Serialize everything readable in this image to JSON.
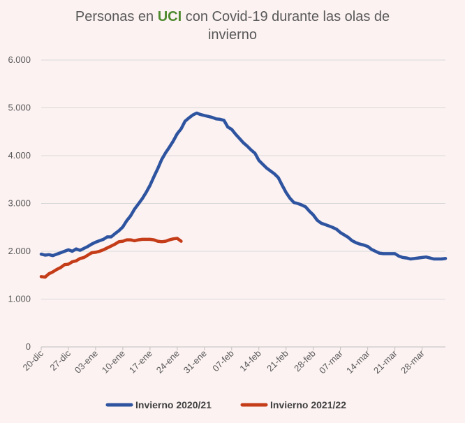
{
  "chart_data": {
    "type": "line",
    "title": {
      "prefix": "Personas en ",
      "highlight": "UCI",
      "suffix_line1": " con Covid-19 durante las olas de",
      "line2": "invierno"
    },
    "xlabel": "",
    "ylabel": "",
    "ylim": [
      0,
      6000
    ],
    "yticks": [
      "0",
      "1.000",
      "2.000",
      "3.000",
      "4.000",
      "5.000",
      "6.000"
    ],
    "ytick_values": [
      0,
      1000,
      2000,
      3000,
      4000,
      5000,
      6000
    ],
    "xlim": [
      0,
      104
    ],
    "xticks": [
      "20-dic",
      "27-dic",
      "03-ene",
      "10-ene",
      "17-ene",
      "24-ene",
      "31-ene",
      "07-feb",
      "14-feb",
      "21-feb",
      "28-feb",
      "07-mar",
      "14-mar",
      "21-mar",
      "28-mar"
    ],
    "xtick_days": [
      0,
      7,
      14,
      21,
      28,
      35,
      42,
      49,
      56,
      63,
      70,
      77,
      84,
      91,
      98
    ],
    "grid": "horizontal",
    "legend_position": "bottom",
    "series": [
      {
        "name": "Invierno 2020/21",
        "color": "#2e54a0",
        "x": [
          0,
          1,
          2,
          3,
          4,
          5,
          6,
          7,
          8,
          9,
          10,
          11,
          12,
          13,
          14,
          15,
          16,
          17,
          18,
          19,
          20,
          21,
          22,
          23,
          24,
          25,
          26,
          27,
          28,
          29,
          30,
          31,
          32,
          33,
          34,
          35,
          36,
          37,
          38,
          39,
          40,
          41,
          42,
          43,
          44,
          45,
          46,
          47,
          48,
          49,
          50,
          51,
          52,
          53,
          54,
          55,
          56,
          57,
          58,
          59,
          60,
          61,
          62,
          63,
          64,
          65,
          66,
          67,
          68,
          69,
          70,
          71,
          72,
          73,
          74,
          75,
          76,
          77,
          78,
          79,
          80,
          81,
          82,
          83,
          84,
          85,
          86,
          87,
          88,
          89,
          90,
          91,
          92,
          93,
          94,
          95,
          96,
          97,
          98,
          99,
          100,
          101,
          102,
          103,
          104
        ],
        "values": [
          1940,
          1920,
          1930,
          1910,
          1940,
          1970,
          2000,
          2030,
          2000,
          2050,
          2020,
          2060,
          2100,
          2150,
          2190,
          2220,
          2250,
          2300,
          2300,
          2370,
          2430,
          2510,
          2640,
          2740,
          2880,
          2990,
          3100,
          3230,
          3380,
          3560,
          3730,
          3920,
          4060,
          4180,
          4310,
          4460,
          4560,
          4720,
          4790,
          4850,
          4890,
          4860,
          4840,
          4820,
          4800,
          4770,
          4760,
          4740,
          4600,
          4550,
          4450,
          4360,
          4270,
          4200,
          4120,
          4050,
          3900,
          3820,
          3740,
          3680,
          3620,
          3540,
          3380,
          3230,
          3110,
          3020,
          3000,
          2970,
          2930,
          2840,
          2760,
          2650,
          2590,
          2560,
          2530,
          2500,
          2460,
          2390,
          2340,
          2290,
          2220,
          2180,
          2150,
          2130,
          2100,
          2040,
          2000,
          1960,
          1950,
          1950,
          1950,
          1950,
          1900,
          1870,
          1860,
          1840,
          1850,
          1860,
          1870,
          1880,
          1860,
          1840,
          1840,
          1840,
          1850
        ]
      },
      {
        "name": "Invierno 2021/22",
        "color": "#c43c18",
        "x": [
          0,
          1,
          2,
          3,
          4,
          5,
          6,
          7,
          8,
          9,
          10,
          11,
          12,
          13,
          14,
          15,
          16,
          17,
          18,
          19,
          20,
          21,
          22,
          23,
          24,
          25,
          26,
          27,
          28,
          29,
          30,
          31,
          32,
          33,
          34,
          35,
          36
        ],
        "values": [
          1470,
          1460,
          1530,
          1570,
          1620,
          1660,
          1720,
          1730,
          1780,
          1800,
          1850,
          1870,
          1920,
          1970,
          1980,
          2000,
          2030,
          2070,
          2110,
          2150,
          2200,
          2210,
          2240,
          2240,
          2220,
          2240,
          2250,
          2250,
          2250,
          2240,
          2210,
          2200,
          2210,
          2240,
          2260,
          2270,
          2210
        ]
      }
    ]
  }
}
